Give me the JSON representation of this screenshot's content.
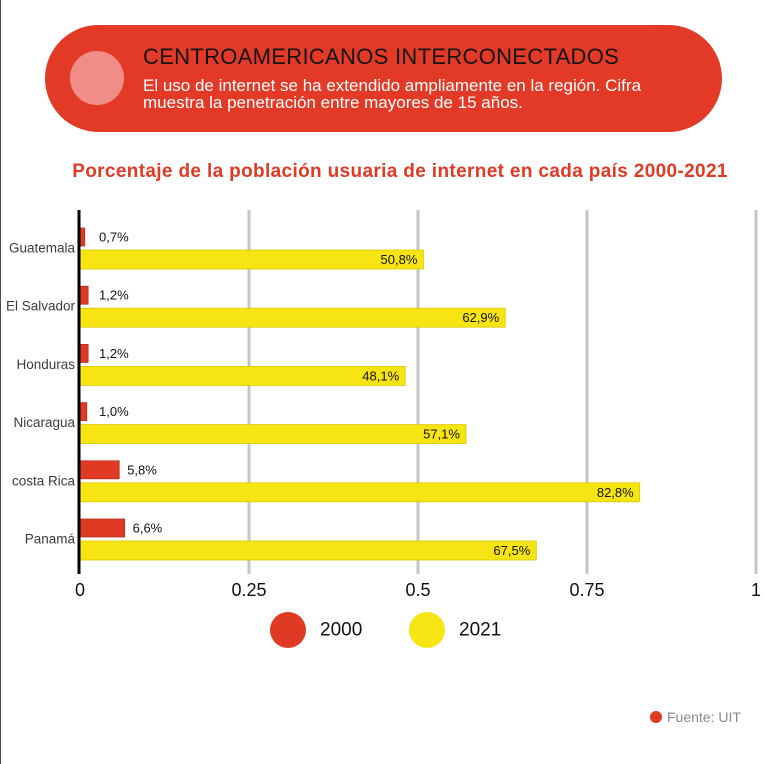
{
  "header": {
    "title": "CENTROAMERICANOS INTERCONECTADOS",
    "subtitle_lines": [
      "El uso de internet se ha extendido ampliamente en la región. Cifra",
      "muestra la penetración entre mayores de 15 años."
    ],
    "banner_color": "#e23a27",
    "circle_color": "#f08d89"
  },
  "chart_data": {
    "type": "bar",
    "orientation": "horizontal",
    "title": "Porcentaje de la población usuaria de internet en cada país 2000-2021",
    "categories": [
      "Guatemala",
      "El Salvador",
      "Honduras",
      "Nicaragua",
      "costa Rica",
      "Panamá"
    ],
    "series": [
      {
        "name": "2000",
        "color": "#e03a25",
        "values": [
          0.007,
          0.012,
          0.012,
          0.01,
          0.058,
          0.066
        ],
        "data_labels": [
          "0,7%",
          "1,2%",
          "1,2%",
          "1,0%",
          "5,8%",
          "6,6%"
        ]
      },
      {
        "name": "2021",
        "color": "#f6e512",
        "values": [
          0.508,
          0.629,
          0.481,
          0.571,
          0.828,
          0.675
        ],
        "data_labels": [
          "50,8%",
          "62,9%",
          "48,1%",
          "57,1%",
          "82,8%",
          "67,5%"
        ]
      }
    ],
    "xlim": [
      0,
      1
    ],
    "xticks": [
      0,
      0.25,
      0.5,
      0.75,
      1
    ],
    "xtick_labels": [
      "0",
      "0.25",
      "0.5",
      "0.75",
      "1"
    ],
    "grid": true,
    "legend_position": "bottom"
  },
  "footer": {
    "source": "Fuente: UIT",
    "dot_color": "#e03a25"
  }
}
